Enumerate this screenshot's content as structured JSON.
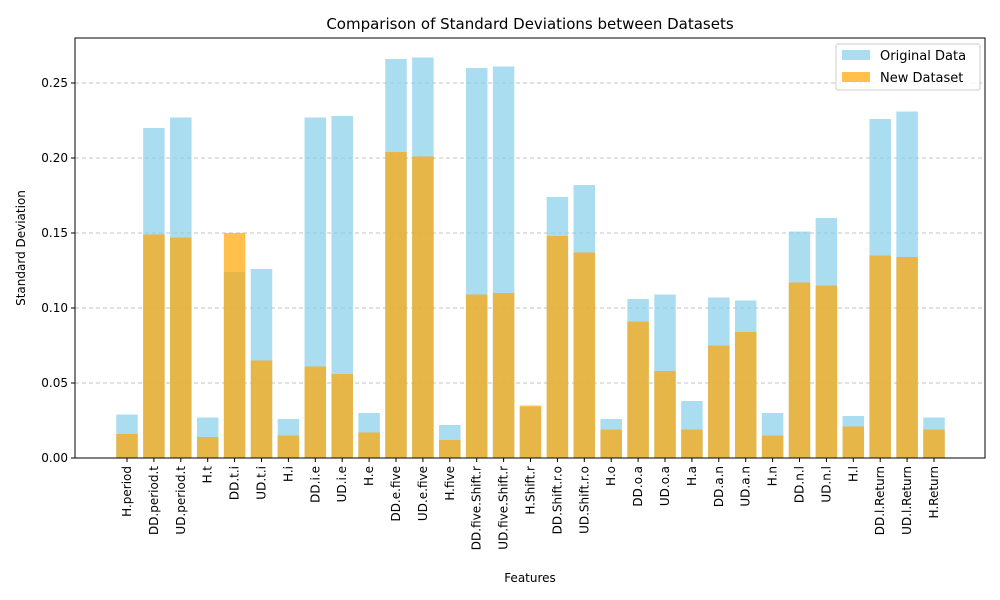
{
  "chart_data": {
    "type": "bar",
    "title": "Comparison of Standard Deviations between Datasets",
    "xlabel": "Features",
    "ylabel": "Standard Deviation",
    "ylim": [
      0,
      0.28
    ],
    "yticks": [
      0.0,
      0.05,
      0.1,
      0.15,
      0.2,
      0.25
    ],
    "ytick_labels": [
      "0.00",
      "0.05",
      "0.10",
      "0.15",
      "0.20",
      "0.25"
    ],
    "grid": "y-dashed",
    "legend_position": "top-right",
    "categories": [
      "H.period",
      "DD.period.t",
      "UD.period.t",
      "H.t",
      "DD.t.i",
      "UD.t.i",
      "H.i",
      "DD.i.e",
      "UD.i.e",
      "H.e",
      "DD.e.five",
      "UD.e.five",
      "H.five",
      "DD.five.Shift.r",
      "UD.five.Shift.r",
      "H.Shift.r",
      "DD.Shift.r.o",
      "UD.Shift.r.o",
      "H.o",
      "DD.o.a",
      "UD.o.a",
      "H.a",
      "DD.a.n",
      "UD.a.n",
      "H.n",
      "DD.n.l",
      "UD.n.l",
      "H.l",
      "DD.l.Return",
      "UD.l.Return",
      "H.Return"
    ],
    "series": [
      {
        "name": "Original Data",
        "color": "#87ceeb",
        "values": [
          0.029,
          0.22,
          0.227,
          0.027,
          0.124,
          0.126,
          0.026,
          0.227,
          0.228,
          0.03,
          0.266,
          0.267,
          0.022,
          0.26,
          0.261,
          0.034,
          0.174,
          0.182,
          0.026,
          0.106,
          0.109,
          0.038,
          0.107,
          0.105,
          0.03,
          0.151,
          0.16,
          0.028,
          0.226,
          0.231,
          0.027
        ]
      },
      {
        "name": "New Dataset",
        "color": "#ffa500",
        "values": [
          0.016,
          0.149,
          0.147,
          0.014,
          0.15,
          0.065,
          0.015,
          0.061,
          0.056,
          0.017,
          0.204,
          0.201,
          0.012,
          0.109,
          0.11,
          0.035,
          0.148,
          0.137,
          0.019,
          0.091,
          0.058,
          0.019,
          0.075,
          0.084,
          0.015,
          0.117,
          0.115,
          0.021,
          0.135,
          0.134,
          0.019
        ]
      }
    ]
  }
}
